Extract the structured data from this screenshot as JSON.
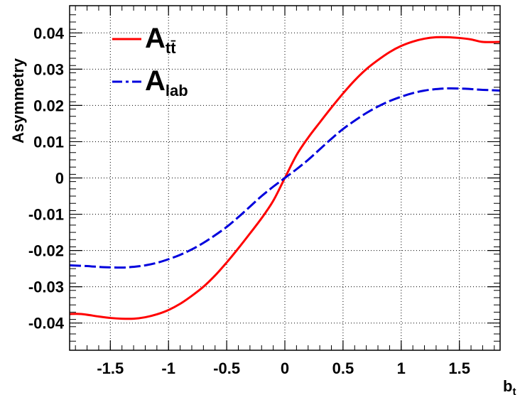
{
  "chart_data": {
    "type": "line",
    "title": "",
    "xlabel": "b",
    "xlabel_sub": "t",
    "ylabel": "Asymmetry",
    "xlim": [
      -1.85,
      1.85
    ],
    "ylim": [
      -0.0475,
      0.0475
    ],
    "xticks": [
      -1.5,
      -1,
      -0.5,
      0,
      0.5,
      1,
      1.5
    ],
    "xtick_labels": [
      "-1.5",
      "-1",
      "-0.5",
      "0",
      "0.5",
      "1",
      "1.5"
    ],
    "yticks": [
      -0.04,
      -0.03,
      -0.02,
      -0.01,
      0,
      0.01,
      0.02,
      0.03,
      0.04
    ],
    "ytick_labels": [
      "-0.04",
      "-0.03",
      "-0.02",
      "-0.01",
      "0",
      "0.01",
      "0.02",
      "0.03",
      "0.04"
    ],
    "grid": true,
    "legend_position": "top-left",
    "series": [
      {
        "name": "A",
        "name_sub": "tt̄",
        "color": "#ff0000",
        "style": "solid",
        "x": [
          -1.85,
          -1.75,
          -1.6,
          -1.5,
          -1.4,
          -1.3,
          -1.2,
          -1.1,
          -1.0,
          -0.9,
          -0.8,
          -0.7,
          -0.6,
          -0.5,
          -0.4,
          -0.3,
          -0.2,
          -0.1,
          0.0,
          0.1,
          0.2,
          0.3,
          0.4,
          0.5,
          0.6,
          0.7,
          0.8,
          0.9,
          1.0,
          1.1,
          1.2,
          1.3,
          1.4,
          1.5,
          1.6,
          1.7,
          1.85
        ],
        "y": [
          -0.0375,
          -0.0375,
          -0.0382,
          -0.0386,
          -0.0388,
          -0.0388,
          -0.0384,
          -0.0376,
          -0.0364,
          -0.0347,
          -0.0325,
          -0.03,
          -0.0269,
          -0.0233,
          -0.0194,
          -0.0153,
          -0.0111,
          -0.0063,
          0.0,
          0.0063,
          0.0111,
          0.0153,
          0.0194,
          0.0233,
          0.0269,
          0.03,
          0.0325,
          0.0347,
          0.0364,
          0.0376,
          0.0384,
          0.0388,
          0.0388,
          0.0386,
          0.0382,
          0.0375,
          0.0375
        ]
      },
      {
        "name": "A",
        "name_sub": "lab",
        "color": "#0000dd",
        "style": "dashed",
        "x": [
          -1.85,
          -1.7,
          -1.55,
          -1.4,
          -1.3,
          -1.2,
          -1.1,
          -1.0,
          -0.9,
          -0.8,
          -0.7,
          -0.6,
          -0.5,
          -0.4,
          -0.3,
          -0.2,
          -0.1,
          0.0,
          0.1,
          0.2,
          0.3,
          0.4,
          0.5,
          0.6,
          0.7,
          0.8,
          0.9,
          1.0,
          1.1,
          1.2,
          1.3,
          1.4,
          1.55,
          1.7,
          1.85
        ],
        "y": [
          -0.0241,
          -0.0243,
          -0.0246,
          -0.0247,
          -0.0245,
          -0.0241,
          -0.0234,
          -0.0224,
          -0.0212,
          -0.0197,
          -0.0179,
          -0.0158,
          -0.0135,
          -0.0108,
          -0.0079,
          -0.005,
          -0.0024,
          0.0,
          0.0024,
          0.005,
          0.0079,
          0.0108,
          0.0135,
          0.0158,
          0.0179,
          0.0197,
          0.0212,
          0.0224,
          0.0234,
          0.0241,
          0.0245,
          0.0247,
          0.0246,
          0.0243,
          0.0241
        ]
      }
    ]
  }
}
